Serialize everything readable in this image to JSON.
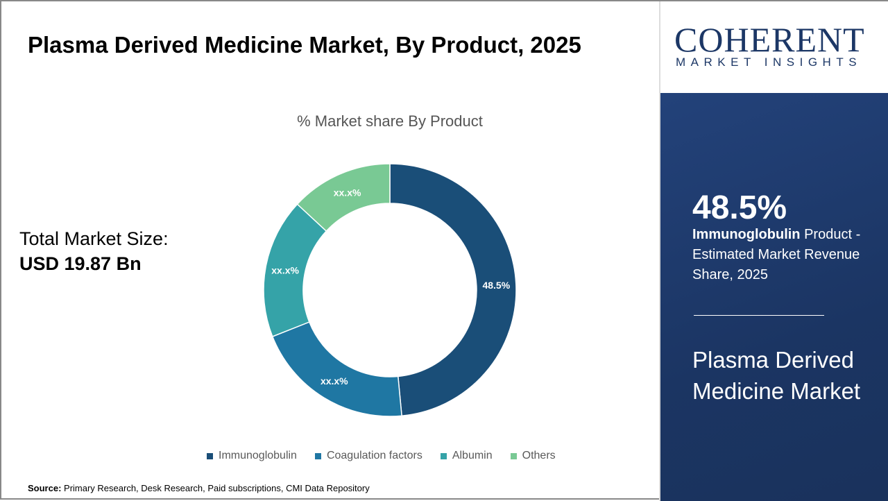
{
  "header": {
    "title": "Plasma Derived Medicine Market, By Product, 2025"
  },
  "total": {
    "label": "Total Market Size:",
    "value": "USD 19.87 Bn"
  },
  "source": {
    "label": "Source:",
    "text": " Primary Research, Desk Research, Paid subscriptions, CMI Data Repository"
  },
  "logo": {
    "name": "COHERENT",
    "tagline": "MARKET INSIGHTS"
  },
  "panel": {
    "percent": "48.5%",
    "segment": "Immunoglobulin",
    "desc": " Product - Estimated Market Revenue Share, 2025",
    "market": "Plasma Derived Medicine Market"
  },
  "chart_data": {
    "type": "pie",
    "donut": true,
    "title": "% Market share By Product",
    "categories": [
      "Immunoglobulin",
      "Coagulation factors",
      "Albumin",
      "Others"
    ],
    "values": [
      48.5,
      20.5,
      17.9,
      13.1
    ],
    "data_labels": [
      "48.5%",
      "xx.x%",
      "xx.x%",
      "xx.x%"
    ],
    "colors": [
      "#1a4e78",
      "#1f77a3",
      "#35a3a8",
      "#79c994"
    ],
    "legend": "bottom"
  }
}
